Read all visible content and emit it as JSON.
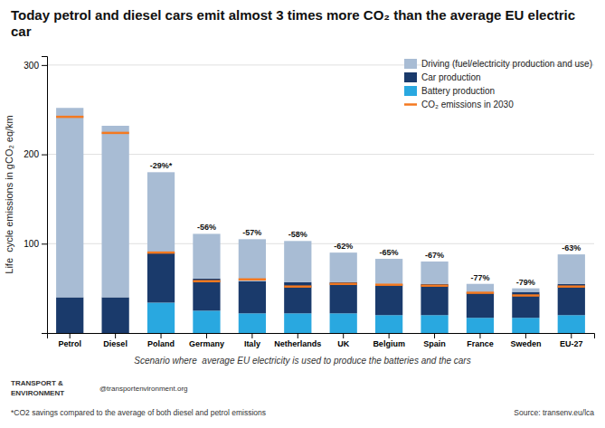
{
  "chart_data": {
    "type": "bar",
    "stacked": true,
    "title": "Today petrol and diesel cars emit almost 3 times more CO₂ than the average EU electric car",
    "ylabel": "Life  cycle emissions in gCO₂ eq/km",
    "categories": [
      "Petrol",
      "Diesel",
      "Poland",
      "Germany",
      "Italy",
      "Netherlands",
      "UK",
      "Belgium",
      "Spain",
      "France",
      "Sweden",
      "EU-27"
    ],
    "series": [
      {
        "name": "Battery production",
        "color": "#29a8e0",
        "values": [
          0,
          0,
          34,
          25,
          22,
          22,
          22,
          20,
          20,
          17,
          17,
          20
        ]
      },
      {
        "name": "Car production",
        "color": "#1a3a6b",
        "values": [
          40,
          40,
          56,
          36,
          36,
          35,
          35,
          35,
          35,
          29,
          29,
          35
        ]
      },
      {
        "name": "Driving (fuel/electricity production and use)",
        "color": "#a8bcd4",
        "values": [
          212,
          192,
          90,
          50,
          47,
          46,
          33,
          28,
          25,
          9,
          4,
          33
        ]
      },
      {
        "name": "CO₂ emissions in 2030",
        "type": "scatter",
        "marker": "hline",
        "color": "#f47920",
        "values": [
          242,
          224,
          90,
          58,
          60,
          52,
          55,
          54,
          53,
          45,
          42,
          52
        ]
      }
    ],
    "savings": {
      "values": [
        null,
        null,
        -29,
        -56,
        -57,
        -58,
        -62,
        -65,
        -67,
        -77,
        -79,
        -63
      ],
      "value_labels": [
        null,
        null,
        "-29%*",
        "-56%",
        "-57%",
        "-58%",
        "-62%",
        "-65%",
        "-67%",
        "-77%",
        "-79%",
        "-63%"
      ]
    },
    "ylim": [
      0,
      310
    ],
    "yticks": [
      100,
      200,
      300
    ],
    "grid": true,
    "legend": "upper right",
    "annotations": [
      "Scenario where  average EU electricity is used to produce the batteries and the cars",
      "TRANSPORT &",
      "ENVIRONMENT",
      "@transportenvironment.org",
      "*CO2 savings compared to the average of both diesel and petrol emissions",
      "Source: transenv.eu/lca"
    ]
  }
}
